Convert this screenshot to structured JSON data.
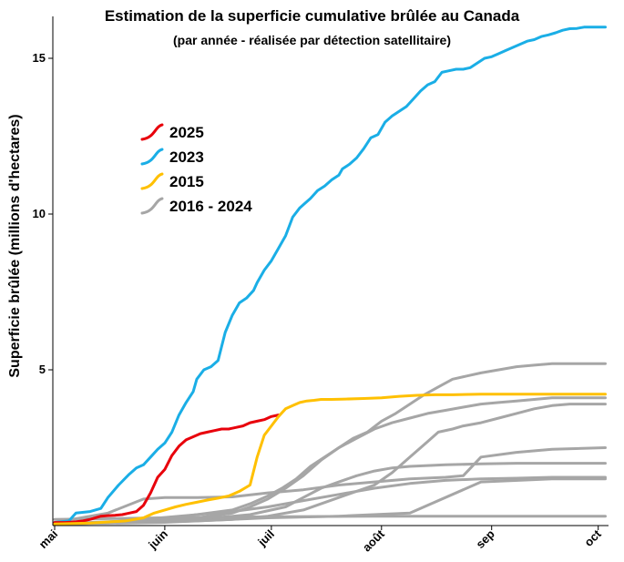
{
  "chart_data": {
    "type": "line",
    "title": "Estimation de la superficie cumulative brûlée au Canada",
    "subtitle": "(par année - réalisée par détection satellitaire)",
    "ylabel": "Superficie brûlée (millions d'hectares)",
    "xlabel": "",
    "x_unit": "days since May 1",
    "x_ticks": [
      {
        "label": "mai",
        "x": 0
      },
      {
        "label": "juin",
        "x": 31
      },
      {
        "label": "juil",
        "x": 61
      },
      {
        "label": "août",
        "x": 92
      },
      {
        "label": "sep",
        "x": 123
      },
      {
        "label": "oct",
        "x": 153
      }
    ],
    "y_ticks": [
      5,
      10,
      15
    ],
    "xlim": [
      0,
      155
    ],
    "ylim": [
      0,
      16.5
    ],
    "grid": false,
    "legend_position": "upper-left",
    "legend": [
      {
        "label": "2025",
        "color": "#e8000b"
      },
      {
        "label": "2023",
        "color": "#1aaee6"
      },
      {
        "label": "2015",
        "color": "#ffc000"
      },
      {
        "label": "2016 - 2024",
        "color": "#a6a6a6"
      }
    ],
    "series": [
      {
        "name": "2023",
        "color": "#1aaee6",
        "x": [
          0,
          4,
          6,
          10,
          13,
          15,
          18,
          21,
          23,
          25,
          27,
          29,
          31,
          33,
          35,
          37,
          39,
          40,
          42,
          44,
          46,
          48,
          50,
          52,
          54,
          56,
          57,
          59,
          61,
          63,
          65,
          67,
          69,
          70,
          72,
          74,
          76,
          78,
          80,
          81,
          83,
          85,
          87,
          89,
          91,
          93,
          95,
          97,
          99,
          101,
          103,
          105,
          107,
          109,
          111,
          113,
          115,
          117,
          119,
          121,
          123,
          125,
          127,
          129,
          131,
          133,
          135,
          137,
          139,
          141,
          143,
          145,
          147,
          149,
          151,
          153,
          155
        ],
        "y": [
          0.1,
          0.15,
          0.4,
          0.45,
          0.55,
          0.9,
          1.3,
          1.65,
          1.85,
          1.95,
          2.2,
          2.45,
          2.65,
          3.0,
          3.55,
          3.95,
          4.3,
          4.7,
          5.0,
          5.1,
          5.3,
          6.2,
          6.75,
          7.15,
          7.3,
          7.55,
          7.8,
          8.2,
          8.5,
          8.9,
          9.3,
          9.9,
          10.2,
          10.3,
          10.5,
          10.75,
          10.9,
          11.1,
          11.25,
          11.45,
          11.6,
          11.8,
          12.1,
          12.45,
          12.55,
          12.95,
          13.15,
          13.3,
          13.45,
          13.7,
          13.95,
          14.15,
          14.25,
          14.55,
          14.6,
          14.65,
          14.65,
          14.7,
          14.85,
          15.0,
          15.05,
          15.15,
          15.25,
          15.35,
          15.45,
          15.55,
          15.6,
          15.7,
          15.75,
          15.82,
          15.9,
          15.95,
          15.96,
          16.0,
          16.0,
          16.0,
          16.0
        ]
      },
      {
        "name": "2025",
        "color": "#e8000b",
        "x": [
          0,
          3,
          6,
          8,
          10,
          13,
          15,
          17,
          19,
          21,
          23,
          25,
          27,
          29,
          31,
          33,
          35,
          37,
          39,
          41,
          43,
          45,
          47,
          49,
          51,
          53,
          55,
          57,
          59,
          61,
          63
        ],
        "y": [
          0.1,
          0.1,
          0.12,
          0.15,
          0.2,
          0.3,
          0.32,
          0.33,
          0.35,
          0.4,
          0.45,
          0.65,
          1.05,
          1.55,
          1.8,
          2.25,
          2.55,
          2.75,
          2.85,
          2.95,
          3.0,
          3.05,
          3.1,
          3.1,
          3.15,
          3.2,
          3.3,
          3.35,
          3.4,
          3.5,
          3.55
        ]
      },
      {
        "name": "2015",
        "color": "#ffc000",
        "x": [
          0,
          10,
          20,
          25,
          28,
          31,
          34,
          37,
          40,
          43,
          46,
          49,
          52,
          55,
          57,
          59,
          61,
          63,
          65,
          67,
          69,
          71,
          73,
          75,
          78,
          82,
          87,
          92,
          97,
          102,
          107,
          112,
          120,
          130,
          140,
          155
        ],
        "y": [
          0.05,
          0.08,
          0.15,
          0.25,
          0.4,
          0.5,
          0.6,
          0.68,
          0.75,
          0.82,
          0.88,
          0.95,
          1.1,
          1.3,
          2.2,
          2.9,
          3.2,
          3.5,
          3.75,
          3.85,
          3.95,
          4.0,
          4.02,
          4.05,
          4.05,
          4.06,
          4.08,
          4.1,
          4.15,
          4.18,
          4.2,
          4.2,
          4.22,
          4.22,
          4.22,
          4.22
        ]
      },
      {
        "name": "",
        "color": "#a6a6a6",
        "x": [
          0,
          20,
          30,
          40,
          50,
          55,
          60,
          64,
          68,
          72,
          76,
          80,
          84,
          88,
          92,
          96,
          100,
          104,
          108,
          112,
          116,
          120,
          125,
          130,
          135,
          140,
          145,
          155
        ],
        "y": [
          0.05,
          0.1,
          0.2,
          0.35,
          0.5,
          0.7,
          0.95,
          1.2,
          1.5,
          1.9,
          2.2,
          2.5,
          2.8,
          3.0,
          3.35,
          3.6,
          3.9,
          4.2,
          4.45,
          4.7,
          4.8,
          4.9,
          5.0,
          5.1,
          5.15,
          5.2,
          5.2,
          5.2
        ]
      },
      {
        "name": "",
        "color": "#a6a6a6",
        "x": [
          0,
          20,
          30,
          40,
          50,
          55,
          60,
          65,
          70,
          75,
          80,
          85,
          90,
          95,
          100,
          105,
          110,
          115,
          120,
          125,
          130,
          135,
          140,
          145,
          155
        ],
        "y": [
          0.05,
          0.1,
          0.15,
          0.25,
          0.4,
          0.6,
          0.85,
          1.2,
          1.6,
          2.1,
          2.5,
          2.8,
          3.1,
          3.3,
          3.45,
          3.6,
          3.7,
          3.8,
          3.9,
          3.95,
          4.0,
          4.05,
          4.1,
          4.1,
          4.1
        ]
      },
      {
        "name": "",
        "color": "#a6a6a6",
        "x": [
          0,
          30,
          50,
          60,
          70,
          80,
          90,
          95,
          100,
          105,
          108,
          112,
          115,
          120,
          125,
          130,
          135,
          140,
          145,
          155
        ],
        "y": [
          0.05,
          0.1,
          0.2,
          0.3,
          0.5,
          0.9,
          1.3,
          1.7,
          2.2,
          2.7,
          3.0,
          3.1,
          3.2,
          3.3,
          3.45,
          3.6,
          3.75,
          3.85,
          3.9,
          3.9
        ]
      },
      {
        "name": "",
        "color": "#a6a6a6",
        "x": [
          0,
          15,
          25,
          31,
          40,
          50,
          60,
          70,
          80,
          90,
          100,
          110,
          115,
          120,
          130,
          140,
          155
        ],
        "y": [
          0.1,
          0.4,
          0.85,
          0.9,
          0.9,
          0.92,
          1.05,
          1.15,
          1.3,
          1.4,
          1.5,
          1.55,
          1.6,
          2.2,
          2.35,
          2.45,
          2.5
        ]
      },
      {
        "name": "",
        "color": "#a6a6a6",
        "x": [
          0,
          20,
          40,
          55,
          65,
          70,
          75,
          80,
          85,
          90,
          95,
          100,
          110,
          120,
          130,
          140,
          155
        ],
        "y": [
          0.05,
          0.1,
          0.2,
          0.35,
          0.6,
          0.9,
          1.2,
          1.4,
          1.6,
          1.75,
          1.85,
          1.9,
          1.95,
          1.98,
          2.0,
          2.0,
          2.0
        ]
      },
      {
        "name": "",
        "color": "#a6a6a6",
        "x": [
          0,
          20,
          35,
          50,
          60,
          70,
          80,
          90,
          100,
          110,
          120,
          130,
          140,
          155
        ],
        "y": [
          0.05,
          0.15,
          0.3,
          0.45,
          0.6,
          0.8,
          1.0,
          1.2,
          1.35,
          1.45,
          1.5,
          1.52,
          1.55,
          1.55
        ]
      },
      {
        "name": "",
        "color": "#a6a6a6",
        "x": [
          0,
          20,
          40,
          60,
          80,
          100,
          120,
          140,
          155
        ],
        "y": [
          0.05,
          0.1,
          0.15,
          0.25,
          0.3,
          0.4,
          1.4,
          1.5,
          1.5
        ]
      },
      {
        "name": "",
        "color": "#a6a6a6",
        "x": [
          0,
          30,
          60,
          90,
          120,
          155
        ],
        "y": [
          0.2,
          0.25,
          0.28,
          0.3,
          0.3,
          0.3
        ]
      }
    ]
  }
}
